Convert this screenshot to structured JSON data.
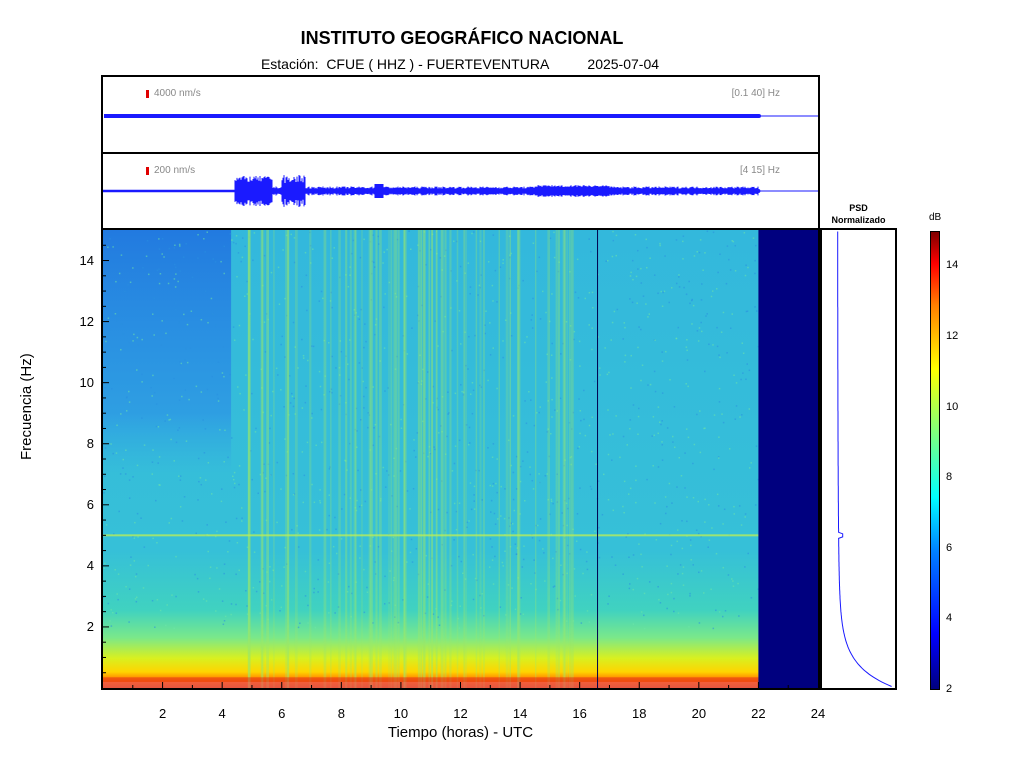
{
  "header": {
    "title": "INSTITUTO GEOGRÁFICO NACIONAL",
    "subtitle": "Estación:  CFUE ( HHZ ) - FUERTEVENTURA          2025-07-04"
  },
  "waveforms": [
    {
      "scale_label": "4000 nm/s",
      "band_label": "[0.1 40] Hz"
    },
    {
      "scale_label": "200 nm/s",
      "band_label": "[4 15] Hz"
    }
  ],
  "psd": {
    "title_line1": "PSD",
    "title_line2": "Normalizado"
  },
  "colorbar": {
    "unit": "dB",
    "ticks": [
      "2",
      "4",
      "6",
      "8",
      "10",
      "12",
      "14"
    ],
    "range": [
      2,
      15
    ]
  },
  "chart_data": {
    "type": "heatmap",
    "title": "INSTITUTO GEOGRÁFICO NACIONAL",
    "xlabel": "Tiempo (horas) - UTC",
    "ylabel": "Frecuencia  (Hz)",
    "xlim": [
      0,
      24
    ],
    "ylim": [
      0,
      15
    ],
    "x_ticks": [
      "2",
      "4",
      "6",
      "8",
      "10",
      "12",
      "14",
      "16",
      "18",
      "20",
      "22",
      "24"
    ],
    "y_ticks": [
      "2",
      "4",
      "6",
      "8",
      "10",
      "12",
      "14"
    ],
    "data_end_hour": 22,
    "gap_marker_hour": 16.6,
    "colorbar_unit": "dB",
    "colorbar_range": [
      2,
      15
    ],
    "bands": [
      {
        "freq_range": [
          0,
          0.5
        ],
        "level_db": 13
      },
      {
        "freq_range": [
          0.5,
          1.2
        ],
        "level_db": 10.5
      },
      {
        "freq_range": [
          1.2,
          2.5
        ],
        "level_db": 8
      },
      {
        "freq_range": [
          2.5,
          15
        ],
        "level_db": 6.5
      }
    ],
    "quiet_period": {
      "hours": [
        0,
        4.3
      ],
      "freq_range": [
        7,
        15
      ],
      "level_db": 4.5
    },
    "line_5hz": {
      "freq": 5,
      "level_db": 8
    }
  }
}
